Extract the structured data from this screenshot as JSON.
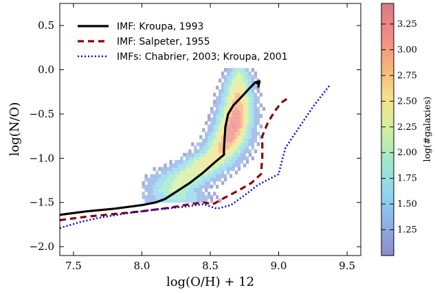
{
  "chart_data": {
    "type": "line",
    "xlabel": "log(O/H) + 12",
    "ylabel": "log(N/O)",
    "xlim": [
      7.4,
      9.6
    ],
    "ylim": [
      -2.1,
      0.75
    ],
    "x_ticks": [
      "7.5",
      "8.0",
      "8.5",
      "9.0",
      "9.5"
    ],
    "x_tick_values": [
      7.5,
      8.0,
      8.5,
      9.0,
      9.5
    ],
    "y_ticks": [
      "0.5",
      "0.0",
      "−0.5",
      "−1.0",
      "−1.5",
      "−2.0"
    ],
    "y_tick_values": [
      0.5,
      0.0,
      -0.5,
      -1.0,
      -1.5,
      -2.0
    ],
    "legend_position": "top-left",
    "series": [
      {
        "name": "IMF: Kroupa, 1993",
        "style": "solid",
        "color": "#000000",
        "x": [
          7.4,
          7.6,
          7.8,
          8.0,
          8.1,
          8.17,
          8.25,
          8.35,
          8.45,
          8.53,
          8.6,
          8.6,
          8.61,
          8.63,
          8.67,
          8.72,
          8.78,
          8.83,
          8.85,
          8.83,
          8.86,
          8.85
        ],
        "y": [
          -1.64,
          -1.6,
          -1.57,
          -1.53,
          -1.5,
          -1.46,
          -1.38,
          -1.28,
          -1.16,
          -1.05,
          -0.96,
          -0.9,
          -0.65,
          -0.5,
          -0.4,
          -0.32,
          -0.22,
          -0.14,
          -0.16,
          -0.14,
          -0.13,
          -0.2
        ]
      },
      {
        "name": "IMF: Salpeter, 1955",
        "style": "dashed",
        "color": "#8b0000",
        "x": [
          7.4,
          7.6,
          7.8,
          8.0,
          8.2,
          8.35,
          8.45,
          8.52,
          8.6,
          8.7,
          8.8,
          8.87,
          8.88,
          8.88,
          8.92,
          8.97,
          9.02,
          9.07
        ],
        "y": [
          -1.7,
          -1.66,
          -1.63,
          -1.6,
          -1.56,
          -1.52,
          -1.5,
          -1.52,
          -1.45,
          -1.37,
          -1.28,
          -1.18,
          -1.0,
          -0.75,
          -0.6,
          -0.47,
          -0.37,
          -0.32
        ]
      },
      {
        "name": "IMFs: Chabrier, 2003; Kroupa, 2001",
        "style": "dotted",
        "color": "#0000ee",
        "x": [
          7.4,
          7.55,
          7.7,
          7.9,
          8.1,
          8.3,
          8.45,
          8.55,
          8.65,
          8.75,
          8.85,
          8.95,
          9.0,
          9.02,
          9.05,
          9.15,
          9.25,
          9.37
        ],
        "y": [
          -1.79,
          -1.72,
          -1.67,
          -1.62,
          -1.58,
          -1.55,
          -1.52,
          -1.57,
          -1.53,
          -1.42,
          -1.3,
          -1.22,
          -1.18,
          -1.05,
          -0.88,
          -0.65,
          -0.42,
          -0.18
        ]
      }
    ],
    "density_map": {
      "description_source": "colour-coded 2D histogram of galaxies",
      "colorbar_label": "log(#galaxies)",
      "colorbar_range": [
        1.0,
        3.45
      ],
      "colorbar_ticks": [
        "3.25",
        "3.00",
        "2.75",
        "2.50",
        "2.25",
        "2.00",
        "1.75",
        "1.50",
        "1.25"
      ],
      "colorbar_tick_values": [
        3.25,
        3.0,
        2.75,
        2.5,
        2.25,
        2.0,
        1.75,
        1.5,
        1.25
      ],
      "colors": [
        "#8c8cc8",
        "#8fb0e6",
        "#8fd6f0",
        "#9ee8c8",
        "#d3ef9f",
        "#f4e28a",
        "#f7b27a",
        "#f08a84",
        "#d87c86"
      ],
      "ridge": [
        {
          "y": 0.02,
          "x": 8.7,
          "sx": 0.04,
          "a": 0.35
        },
        {
          "y": -0.1,
          "x": 8.7,
          "sx": 0.06,
          "a": 0.5
        },
        {
          "y": -0.3,
          "x": 8.69,
          "sx": 0.07,
          "a": 0.7
        },
        {
          "y": -0.5,
          "x": 8.68,
          "sx": 0.08,
          "a": 0.85
        },
        {
          "y": -0.65,
          "x": 8.66,
          "sx": 0.08,
          "a": 0.95
        },
        {
          "y": -0.8,
          "x": 8.63,
          "sx": 0.09,
          "a": 0.85
        },
        {
          "y": -0.95,
          "x": 8.57,
          "sx": 0.1,
          "a": 0.7
        },
        {
          "y": -1.1,
          "x": 8.45,
          "sx": 0.13,
          "a": 0.6
        },
        {
          "y": -1.25,
          "x": 8.3,
          "sx": 0.14,
          "a": 0.5
        },
        {
          "y": -1.38,
          "x": 8.22,
          "sx": 0.12,
          "a": 0.45
        },
        {
          "y": -1.5,
          "x": 8.25,
          "sx": 0.14,
          "a": 0.3
        }
      ]
    }
  }
}
